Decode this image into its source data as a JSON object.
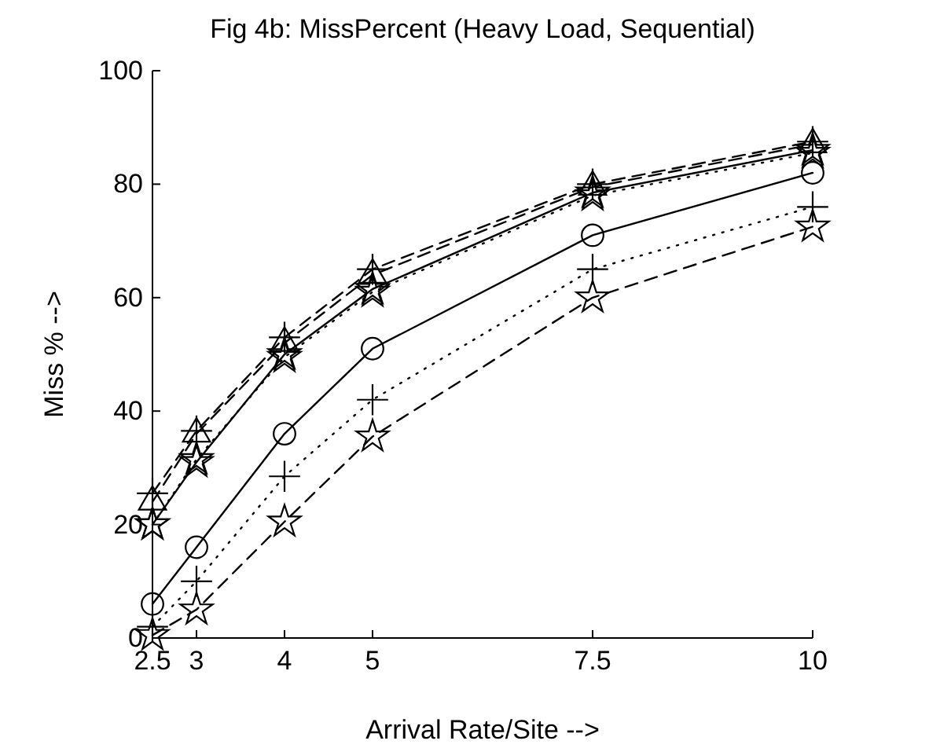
{
  "chart_data": {
    "type": "line",
    "title": "Fig 4b: MissPercent (Heavy Load, Sequential)",
    "xlabel": "Arrival Rate/Site -->",
    "ylabel": "Miss % -->",
    "x": [
      2.5,
      3,
      4,
      5,
      7.5,
      10
    ],
    "xlim": [
      2.5,
      10
    ],
    "xticks": [
      {
        "value": 2.5,
        "label": "2.5"
      },
      {
        "value": 3,
        "label": "3"
      },
      4,
      5,
      7.5,
      10
    ],
    "ylim": [
      0,
      100
    ],
    "yticks": [
      0,
      20,
      40,
      60,
      80,
      100
    ],
    "grid": false,
    "series": [
      {
        "color": "#000000",
        "marker": "circle",
        "line_style": "solid",
        "values": [
          6,
          16,
          36,
          51,
          71,
          82
        ]
      },
      {
        "color": "#000000",
        "marker": "cross",
        "line_style": "dotted",
        "values": [
          2,
          10,
          28.5,
          42,
          65,
          76
        ]
      },
      {
        "color": "#000000",
        "marker": "star",
        "line_style": "dashed",
        "values": [
          0.5,
          5,
          20.5,
          35.5,
          60,
          72.5
        ]
      },
      {
        "color": "#000000",
        "marker": "cross",
        "line_style": "dashed",
        "values": [
          25.5,
          36.5,
          53,
          65,
          80,
          87.5
        ]
      },
      {
        "color": "#000000",
        "marker": "triangle",
        "line_style": "dashed",
        "values": [
          24,
          36,
          52,
          64,
          79.5,
          87
        ]
      },
      {
        "color": "#000000",
        "marker": "star",
        "line_style": "solid",
        "values": [
          20,
          31,
          50,
          61.5,
          78.5,
          86
        ]
      },
      {
        "color": "#000000",
        "marker": "star",
        "line_style": "dotted",
        "values": [
          20,
          31.5,
          49.5,
          61,
          78,
          85.5
        ]
      }
    ]
  }
}
